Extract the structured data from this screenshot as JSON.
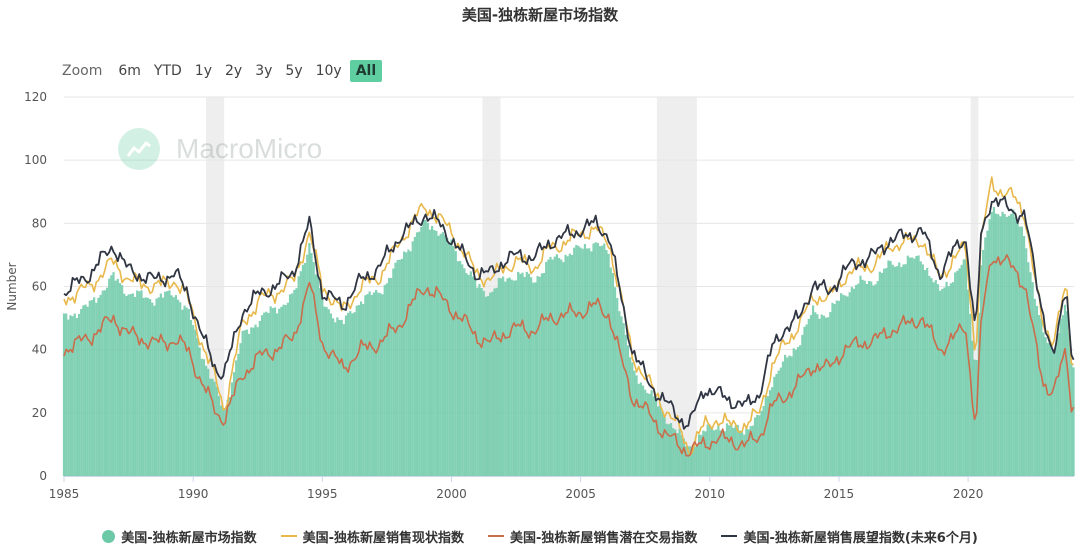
{
  "title": "美国-独栋新屋市场指数",
  "range_selector": {
    "zoom_label": "Zoom",
    "buttons": [
      "6m",
      "YTD",
      "1y",
      "2y",
      "3y",
      "5y",
      "10y",
      "All"
    ],
    "active": "All"
  },
  "watermark": "MacroMicro",
  "colors": {
    "hmi_bars": "#6cc9a8",
    "present_sales": "#e8b84b",
    "prospective_traffic": "#c96d4b",
    "future_sales": "#2f3542",
    "recession_band": "#eeeeee",
    "grid": "#e6e6e6"
  },
  "chart_data": {
    "type": "bar",
    "ylabel": "Number",
    "ylim": [
      0,
      120
    ],
    "yticks": [
      0,
      20,
      40,
      60,
      80,
      100,
      120
    ],
    "xlim": [
      1985,
      2024.1
    ],
    "xticks": [
      "1985",
      "1990",
      "1995",
      "2000",
      "2005",
      "2010",
      "2015",
      "2020"
    ],
    "grid": true,
    "legend_position": "bottom",
    "recessions": [
      [
        1990.5,
        1991.2
      ],
      [
        2001.2,
        2001.9
      ],
      [
        2007.95,
        2009.5
      ],
      [
        2020.1,
        2020.4
      ]
    ],
    "anchors_x": [
      1985,
      1986,
      1986.9,
      1987.5,
      1988.5,
      1989.3,
      1989.8,
      1990.3,
      1990.9,
      1991.2,
      1991.9,
      1992.6,
      1993.2,
      1993.9,
      1994.5,
      1995.0,
      1995.8,
      1996.5,
      1997.2,
      1998.0,
      1998.6,
      1999.0,
      1999.5,
      2000.1,
      2000.6,
      2001.0,
      2001.5,
      2002.0,
      2002.6,
      2003.2,
      2003.8,
      2004.4,
      2005.0,
      2005.6,
      2006.1,
      2006.6,
      2007.0,
      2007.6,
      2008.2,
      2008.9,
      2009.2,
      2009.8,
      2010.3,
      2010.8,
      2011.4,
      2011.9,
      2012.4,
      2012.9,
      2013.5,
      2014.0,
      2014.6,
      2015.2,
      2015.8,
      2016.4,
      2017.0,
      2017.6,
      2018.2,
      2018.9,
      2019.5,
      2019.9,
      2020.3,
      2020.5,
      2020.9,
      2021.3,
      2021.8,
      2022.2,
      2022.6,
      2022.9,
      2023.3,
      2023.8,
      2024.0
    ],
    "series": [
      {
        "name": "美国-独栋新屋市场指数",
        "render": "bar",
        "values": [
          50,
          54,
          63,
          58,
          56,
          58,
          52,
          40,
          27,
          20,
          44,
          50,
          53,
          57,
          74,
          55,
          48,
          56,
          58,
          68,
          76,
          80,
          78,
          72,
          65,
          60,
          58,
          62,
          64,
          62,
          68,
          70,
          72,
          74,
          70,
          50,
          34,
          27,
          20,
          12,
          9,
          14,
          16,
          15,
          15,
          18,
          30,
          36,
          43,
          52,
          51,
          58,
          61,
          62,
          67,
          68,
          69,
          58,
          64,
          68,
          32,
          68,
          83,
          84,
          82,
          76,
          56,
          45,
          40,
          55,
          35
        ]
      },
      {
        "name": "美国-独栋新屋销售现状指数",
        "render": "line",
        "values": [
          56,
          60,
          68,
          62,
          60,
          62,
          56,
          43,
          30,
          21,
          48,
          56,
          58,
          62,
          77,
          60,
          52,
          60,
          63,
          74,
          82,
          85,
          82,
          76,
          69,
          64,
          62,
          66,
          68,
          66,
          72,
          74,
          77,
          78,
          74,
          55,
          38,
          30,
          22,
          14,
          8,
          16,
          18,
          16,
          16,
          20,
          34,
          42,
          48,
          57,
          56,
          63,
          66,
          67,
          73,
          74,
          75,
          63,
          69,
          73,
          38,
          74,
          93,
          90,
          88,
          83,
          61,
          48,
          43,
          60,
          37
        ]
      },
      {
        "name": "美国-独栋新屋销售潜在交易指数",
        "render": "line",
        "values": [
          40,
          44,
          50,
          45,
          42,
          43,
          40,
          30,
          20,
          18,
          32,
          38,
          40,
          44,
          61,
          42,
          34,
          40,
          42,
          48,
          56,
          60,
          57,
          52,
          48,
          44,
          42,
          45,
          47,
          46,
          50,
          51,
          52,
          54,
          51,
          36,
          25,
          20,
          14,
          9,
          8,
          10,
          12,
          11,
          10,
          12,
          22,
          25,
          30,
          35,
          34,
          40,
          42,
          43,
          46,
          48,
          50,
          40,
          44,
          48,
          14,
          48,
          70,
          68,
          66,
          60,
          42,
          30,
          26,
          40,
          22
        ]
      },
      {
        "name": "美国-独栋新屋销售展望指数(未来6个月)",
        "render": "line",
        "values": [
          58,
          64,
          73,
          65,
          62,
          64,
          58,
          45,
          34,
          32,
          52,
          58,
          60,
          65,
          80,
          58,
          54,
          62,
          66,
          76,
          80,
          83,
          80,
          74,
          68,
          64,
          64,
          68,
          70,
          69,
          74,
          76,
          78,
          80,
          76,
          55,
          40,
          30,
          24,
          18,
          16,
          28,
          26,
          24,
          22,
          26,
          40,
          47,
          50,
          61,
          58,
          65,
          68,
          70,
          75,
          76,
          78,
          64,
          72,
          76,
          44,
          76,
          88,
          86,
          84,
          82,
          64,
          52,
          36,
          62,
          38
        ]
      }
    ]
  }
}
